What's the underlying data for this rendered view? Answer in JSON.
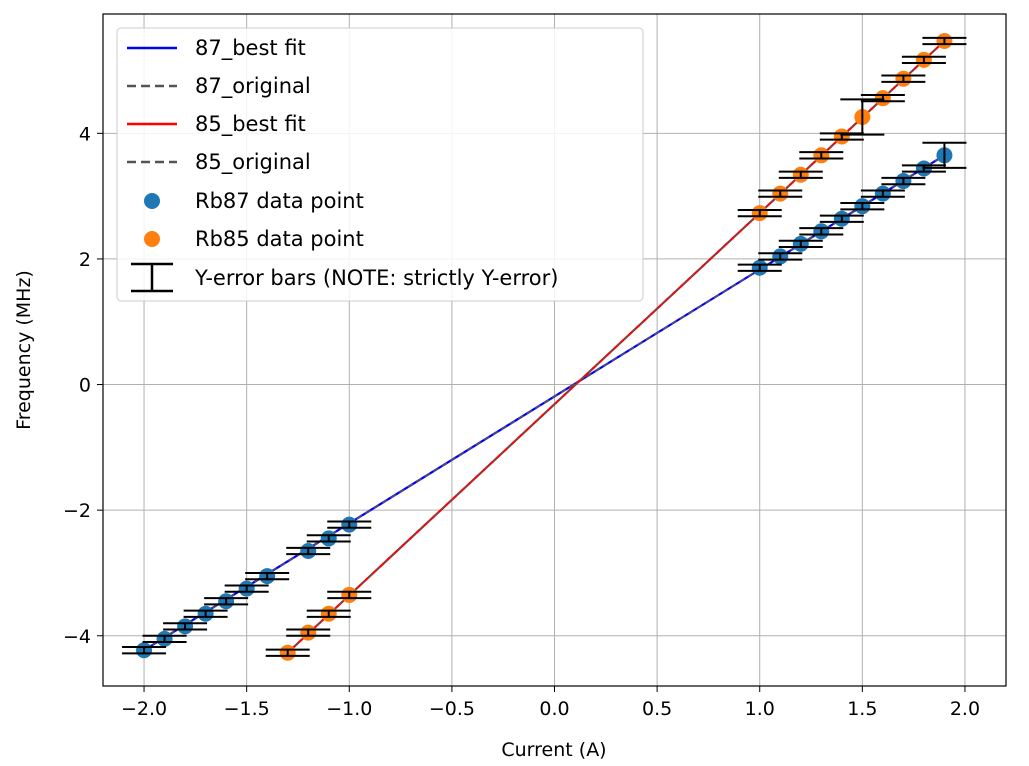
{
  "chart_data": {
    "type": "scatter",
    "xlabel": "Current (A)",
    "ylabel": "Frequency (MHz)",
    "xlim": [
      -2.2,
      2.2
    ],
    "ylim": [
      -4.8,
      5.9
    ],
    "xticks": [
      -2.0,
      -1.5,
      -1.0,
      -0.5,
      0.0,
      0.5,
      1.0,
      1.5,
      2.0
    ],
    "xtick_labels": [
      "−2.0",
      "−1.5",
      "−1.0",
      "−0.5",
      "0.0",
      "0.5",
      "1.0",
      "1.5",
      "2.0"
    ],
    "yticks": [
      -4,
      -2,
      0,
      2,
      4
    ],
    "ytick_labels": [
      "−4",
      "−2",
      "0",
      "2",
      "4"
    ],
    "grid": true,
    "legend_position": "top-left",
    "lines": [
      {
        "name": "87_best fit",
        "color": "#0000ff",
        "style": "solid",
        "x": [
          -2.0,
          1.9
        ],
        "y": [
          -4.23,
          3.65
        ]
      },
      {
        "name": "87_original",
        "color": "#555555",
        "style": "dashed",
        "x": [
          -2.0,
          1.9
        ],
        "y": [
          -4.23,
          3.65
        ]
      },
      {
        "name": "85_best fit",
        "color": "#ff0000",
        "style": "solid",
        "x": [
          -1.3,
          1.9
        ],
        "y": [
          -4.27,
          5.47
        ]
      },
      {
        "name": "85_original",
        "color": "#555555",
        "style": "dashed",
        "x": [
          -1.3,
          1.9
        ],
        "y": [
          -4.27,
          5.47
        ]
      }
    ],
    "series": [
      {
        "name": "Rb87 data point",
        "color": "#1f77b4",
        "x": [
          -2.0,
          -1.9,
          -1.8,
          -1.7,
          -1.6,
          -1.5,
          -1.4,
          -1.2,
          -1.1,
          -1.0,
          1.0,
          1.1,
          1.2,
          1.3,
          1.4,
          1.5,
          1.6,
          1.7,
          1.8,
          1.9
        ],
        "y": [
          -4.23,
          -4.05,
          -3.85,
          -3.65,
          -3.45,
          -3.25,
          -3.05,
          -2.65,
          -2.45,
          -2.23,
          1.86,
          2.04,
          2.24,
          2.44,
          2.64,
          2.84,
          3.04,
          3.24,
          3.44,
          3.65
        ],
        "yerr": [
          0.05,
          0.05,
          0.05,
          0.05,
          0.05,
          0.05,
          0.05,
          0.05,
          0.05,
          0.05,
          0.05,
          0.05,
          0.05,
          0.05,
          0.05,
          0.05,
          0.05,
          0.05,
          0.05,
          0.2
        ]
      },
      {
        "name": "Rb85 data point",
        "color": "#ff7f0e",
        "x": [
          -1.3,
          -1.2,
          -1.1,
          -1.0,
          1.0,
          1.1,
          1.2,
          1.3,
          1.4,
          1.5,
          1.6,
          1.7,
          1.8,
          1.9
        ],
        "y": [
          -4.27,
          -3.95,
          -3.65,
          -3.35,
          2.73,
          3.04,
          3.34,
          3.65,
          3.95,
          4.26,
          4.56,
          4.87,
          5.17,
          5.47
        ],
        "yerr": [
          0.05,
          0.05,
          0.05,
          0.05,
          0.05,
          0.05,
          0.05,
          0.05,
          0.05,
          0.28,
          0.05,
          0.05,
          0.05,
          0.05
        ]
      }
    ],
    "errorbar_legend": "Y-error bars (NOTE: strictly Y-error)"
  }
}
